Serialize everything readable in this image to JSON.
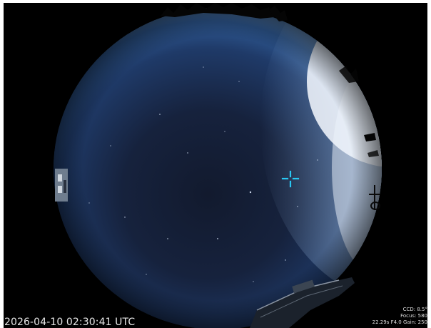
{
  "timestamp": "2026-04-10 02:30:41 UTC",
  "camera_info": {
    "ccd": "CCD: 8.5°",
    "focus": "Focus: 580",
    "exposure": "22.29s F4.0 Gain: 250"
  },
  "colors": {
    "background": "#000000",
    "sky_center": "#141d33",
    "sky_edge": "#2f5a94",
    "horizon_glow": "#f4f8ff",
    "crosshair": "#29c7f2",
    "text": "#e6e6e6"
  },
  "icons": {
    "crosshair": "crosshair-icon"
  }
}
